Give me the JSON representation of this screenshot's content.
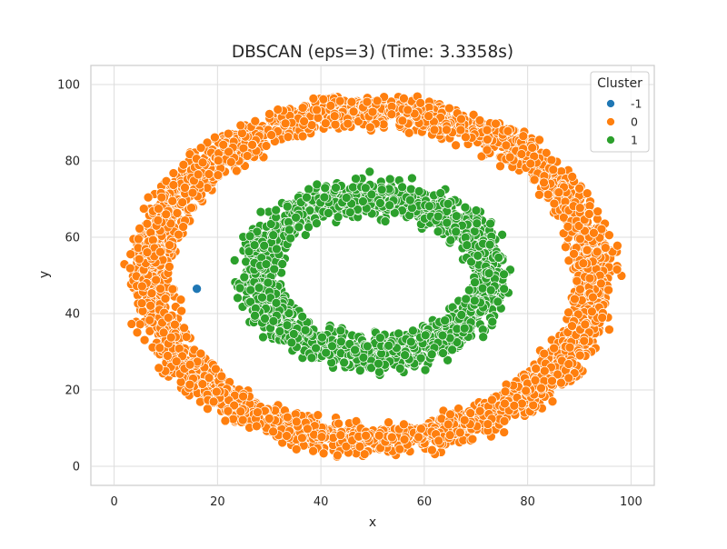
{
  "chart_data": {
    "type": "scatter",
    "title": "DBSCAN (eps=3) (Time: 3.3358s)",
    "xlabel": "x",
    "ylabel": "y",
    "xlim": [
      -4.5,
      104.5
    ],
    "ylim": [
      -5,
      105
    ],
    "xticks": [
      0,
      20,
      40,
      60,
      80,
      100
    ],
    "yticks": [
      0,
      20,
      40,
      60,
      80,
      100
    ],
    "grid": true,
    "legend": {
      "title": "Cluster",
      "placement": "top-right",
      "entries": [
        {
          "label": "-1",
          "color": "#1f77b4"
        },
        {
          "label": "0",
          "color": "#ff7f0e"
        },
        {
          "label": "1",
          "color": "#2ca02c"
        }
      ]
    },
    "series": [
      {
        "name": "-1",
        "color": "#1f77b4",
        "shape": "point",
        "points": [
          [
            16,
            46.5
          ]
        ]
      },
      {
        "name": "0",
        "color": "#ff7f0e",
        "shape": "ring",
        "center": [
          50,
          50
        ],
        "x_radius": [
          37,
          49
        ],
        "y_radius": [
          37,
          49
        ]
      },
      {
        "name": "1",
        "color": "#2ca02c",
        "shape": "ring",
        "center": [
          50,
          50
        ],
        "x_radius": [
          17,
          28
        ],
        "y_radius": [
          13,
          28
        ]
      }
    ]
  }
}
